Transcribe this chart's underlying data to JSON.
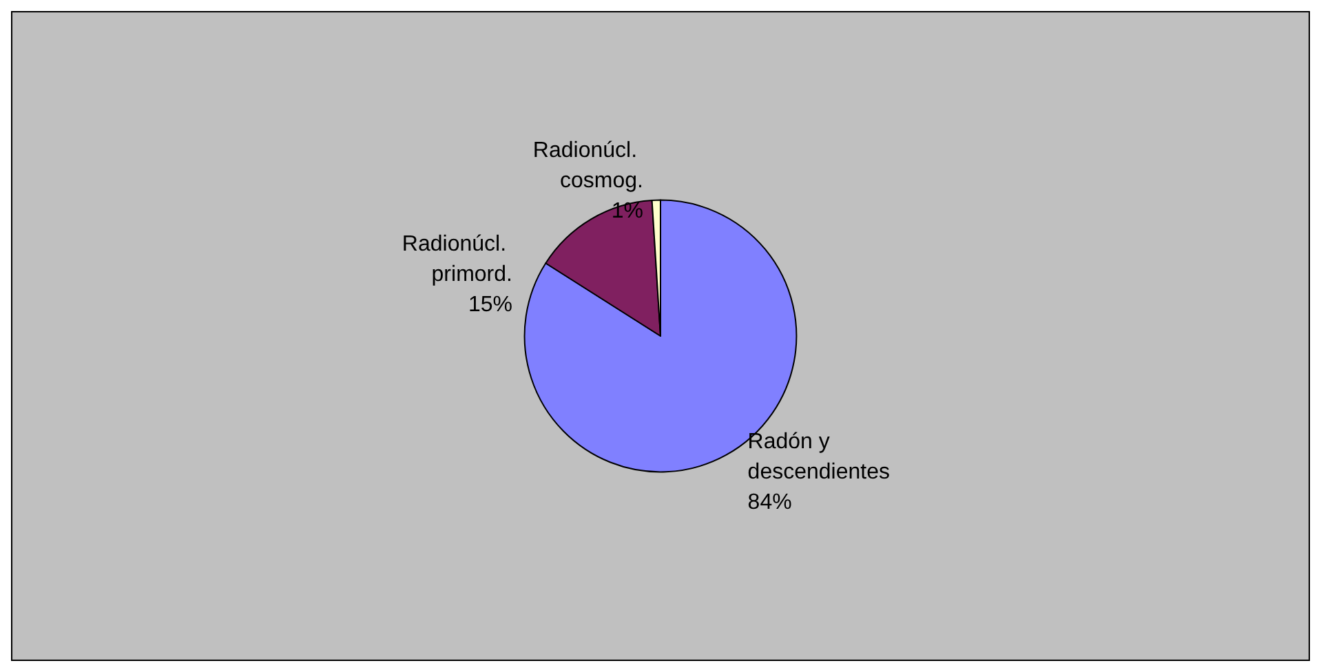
{
  "chart_data": {
    "type": "pie",
    "categories": [
      "Radón y descendientes",
      "Radionúcl. primord.",
      "Radionúcl. cosmog."
    ],
    "values": [
      84,
      15,
      1
    ],
    "colors": [
      "#8080ff",
      "#802060",
      "#ffffcc"
    ],
    "value_labels": [
      "84%",
      "15%",
      "1%"
    ],
    "legend": false
  }
}
